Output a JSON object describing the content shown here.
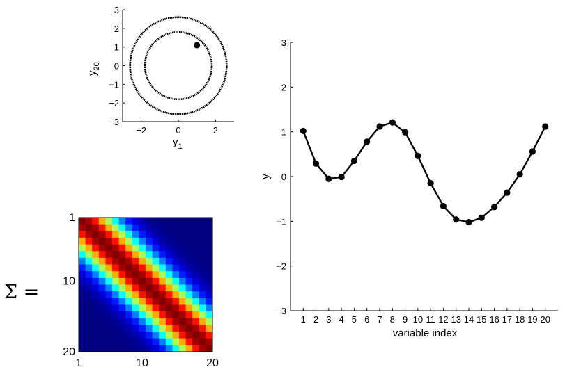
{
  "chart_data": [
    {
      "type": "scatter",
      "xlabel": "y",
      "xlabel_sub": "1",
      "ylabel": "y",
      "ylabel_sub": "20",
      "xlim": [
        -3,
        3
      ],
      "ylim": [
        -3,
        3
      ],
      "xticks": [
        -2,
        0,
        2
      ],
      "yticks": [
        -3,
        -2,
        -1,
        0,
        1,
        2,
        3
      ],
      "circles": [
        {
          "radius": 1.8
        },
        {
          "radius": 2.6
        }
      ],
      "point": {
        "x": 1.0,
        "y": 1.1
      }
    },
    {
      "type": "heatmap",
      "colormap": "jet",
      "size": 20,
      "length_scale": 3.6,
      "xticks": [
        1,
        10,
        20
      ],
      "yticks": [
        1,
        10,
        20
      ],
      "label": "Σ ="
    },
    {
      "type": "line",
      "xlabel": "variable index",
      "ylabel": "y",
      "xlim": [
        0,
        21
      ],
      "ylim": [
        -3,
        3
      ],
      "yticks": [
        -3,
        -2,
        -1,
        0,
        1,
        2,
        3
      ],
      "series": [
        {
          "x": [
            1,
            2,
            3,
            4,
            5,
            6,
            7,
            8,
            9,
            10,
            11,
            12,
            13,
            14,
            15,
            16,
            17,
            18,
            19,
            20
          ],
          "values": [
            1.02,
            0.29,
            -0.05,
            -0.01,
            0.35,
            0.78,
            1.12,
            1.21,
            0.99,
            0.46,
            -0.15,
            -0.66,
            -0.96,
            -1.02,
            -0.92,
            -0.68,
            -0.36,
            0.05,
            0.56,
            1.12
          ],
          "color": "#000000"
        }
      ]
    }
  ]
}
